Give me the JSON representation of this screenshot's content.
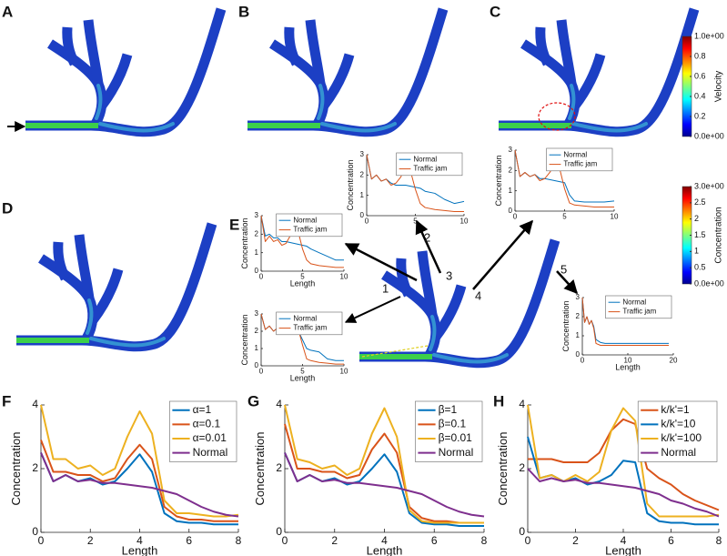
{
  "panels": [
    "A",
    "B",
    "C",
    "D",
    "E",
    "F",
    "G",
    "H"
  ],
  "locations": [
    "1",
    "2",
    "3",
    "4",
    "5"
  ],
  "chart_data": [
    {
      "type": "colorbar",
      "label": "Velocity",
      "ylim": [
        0,
        1
      ],
      "yticks": [
        {
          "value": 0,
          "label": "0.0e+00"
        },
        0.2,
        0.4,
        0.6,
        0.8,
        {
          "value": 1,
          "label": "1.0e+00"
        }
      ]
    },
    {
      "type": "colorbar",
      "label": "Concentration",
      "ylim": [
        0,
        3
      ],
      "yticks": [
        {
          "value": 0,
          "label": "0.0e+00"
        },
        0.5,
        1,
        1.5,
        2,
        2.5,
        {
          "value": 3,
          "label": "3.0e+00"
        }
      ]
    },
    {
      "type": "line",
      "ylabel": "Concentration",
      "legend": "upper right",
      "x": [
        0,
        0.5,
        1,
        1.5,
        2,
        2.5,
        3,
        3.5,
        4,
        4.5,
        5,
        5.5,
        6,
        7,
        8,
        9,
        10
      ],
      "xlim": [
        0,
        10
      ],
      "xticks": [
        0,
        5,
        10
      ],
      "ylim": [
        0,
        3
      ],
      "yticks": [
        0,
        1,
        2,
        3
      ],
      "series": [
        {
          "name": "Normal",
          "color": "#0072bd",
          "values": [
            3,
            1.8,
            2,
            1.7,
            1.8,
            1.6,
            1.5,
            1.5,
            1.5,
            1.45,
            1.4,
            1.35,
            1.2,
            1.1,
            0.8,
            0.6,
            0.7
          ]
        },
        {
          "name": "Traffic jam",
          "color": "#d95319",
          "values": [
            3,
            1.8,
            2,
            1.7,
            1.8,
            1.5,
            1.6,
            1.9,
            2.4,
            2.2,
            1.3,
            0.6,
            0.4,
            0.3,
            0.25,
            0.2,
            0.2
          ]
        }
      ]
    },
    {
      "type": "line",
      "ylabel": "Concentration",
      "legend": "upper right",
      "x": [
        0,
        0.5,
        1,
        1.5,
        2,
        2.5,
        3,
        3.5,
        4,
        4.5,
        5,
        5.5,
        6,
        7,
        8,
        9,
        10
      ],
      "xlim": [
        0,
        10
      ],
      "xticks": [
        0,
        5,
        10
      ],
      "ylim": [
        0,
        3
      ],
      "yticks": [
        0,
        1,
        2,
        3
      ],
      "series": [
        {
          "name": "Normal",
          "color": "#0072bd",
          "values": [
            3,
            1.7,
            1.9,
            1.7,
            1.8,
            1.6,
            1.6,
            1.55,
            1.5,
            1.45,
            1.4,
            0.8,
            0.5,
            0.45,
            0.45,
            0.45,
            0.5
          ]
        },
        {
          "name": "Traffic jam",
          "color": "#d95319",
          "values": [
            3,
            1.7,
            1.9,
            1.7,
            1.8,
            1.5,
            1.6,
            1.9,
            2.3,
            2.1,
            1.1,
            0.4,
            0.3,
            0.25,
            0.2,
            0.2,
            0.2
          ]
        }
      ]
    },
    {
      "type": "line",
      "ylabel": "Concentration",
      "xlabel": "Length",
      "legend": "upper right",
      "x": [
        0,
        0.5,
        1,
        1.5,
        2,
        2.5,
        3,
        3.5,
        4,
        4.5,
        5,
        5.5,
        6,
        7,
        8,
        9,
        10
      ],
      "xlim": [
        0,
        10
      ],
      "xticks": [
        0,
        5,
        10
      ],
      "ylim": [
        0,
        3
      ],
      "yticks": [
        0,
        1,
        2,
        3
      ],
      "series": [
        {
          "name": "Normal",
          "color": "#0072bd",
          "values": [
            3,
            1.9,
            2,
            1.8,
            1.8,
            1.6,
            1.6,
            1.55,
            1.5,
            1.45,
            1.4,
            1.35,
            1.2,
            1.0,
            0.8,
            0.6,
            0.6
          ]
        },
        {
          "name": "Traffic jam",
          "color": "#d95319",
          "values": [
            3,
            1.6,
            1.9,
            1.6,
            1.7,
            1.4,
            1.5,
            1.9,
            2.3,
            2.1,
            1.2,
            0.6,
            0.4,
            0.3,
            0.25,
            0.2,
            0.2
          ]
        }
      ]
    },
    {
      "type": "line",
      "ylabel": "Concentration",
      "xlabel": "Length",
      "legend": "upper right",
      "x": [
        0,
        0.5,
        1,
        1.5,
        2,
        2.5,
        3,
        3.5,
        4,
        4.5,
        5,
        5.5,
        6,
        7,
        8,
        9,
        10
      ],
      "xlim": [
        0,
        10
      ],
      "xticks": [
        0,
        5,
        10
      ],
      "ylim": [
        0,
        3
      ],
      "yticks": [
        0,
        1,
        2,
        3
      ],
      "series": [
        {
          "name": "Normal",
          "color": "#0072bd",
          "values": [
            3,
            2.1,
            2.3,
            2.0,
            2.2,
            2.0,
            2.1,
            2.2,
            2.2,
            2.0,
            1.5,
            1.0,
            0.9,
            0.8,
            0.4,
            0.3,
            0.3
          ]
        },
        {
          "name": "Traffic jam",
          "color": "#d95319",
          "values": [
            3,
            2.1,
            2.3,
            2.0,
            2.2,
            2.0,
            2.1,
            2.2,
            2.3,
            2.1,
            1.2,
            0.4,
            0.3,
            0.2,
            0.15,
            0.1,
            0.1
          ]
        }
      ]
    },
    {
      "type": "line",
      "ylabel": "Concentration",
      "xlabel": "Length",
      "legend": "upper right",
      "x": [
        0,
        0.5,
        1,
        1.5,
        2,
        2.5,
        3,
        4,
        5,
        10,
        15,
        19
      ],
      "xlim": [
        0,
        20
      ],
      "xticks": [
        0,
        10,
        20
      ],
      "ylim": [
        0,
        3
      ],
      "yticks": [
        0,
        1,
        2,
        3
      ],
      "series": [
        {
          "name": "Normal",
          "color": "#0072bd",
          "values": [
            3,
            1.7,
            2,
            1.6,
            1.8,
            1.5,
            0.8,
            0.65,
            0.6,
            0.6,
            0.6,
            0.6
          ]
        },
        {
          "name": "Traffic jam",
          "color": "#d95319",
          "values": [
            3,
            1.7,
            2,
            1.6,
            1.8,
            1.4,
            0.6,
            0.5,
            0.5,
            0.5,
            0.5,
            0.5
          ]
        }
      ]
    },
    {
      "type": "line",
      "ylabel": "Concentration",
      "xlabel": "Length",
      "legend": "upper right",
      "x": [
        0,
        0.5,
        1,
        1.5,
        2,
        2.5,
        3,
        3.5,
        4,
        4.5,
        5,
        5.5,
        6,
        6.5,
        7,
        7.5,
        8
      ],
      "xlim": [
        0,
        8
      ],
      "xticks": [
        0,
        2,
        4,
        6,
        8
      ],
      "ylim": [
        0,
        4
      ],
      "yticks": [
        0,
        2,
        4
      ],
      "series": [
        {
          "name": "α=1",
          "color": "#0072bd",
          "values": [
            2.5,
            1.6,
            1.8,
            1.6,
            1.7,
            1.5,
            1.6,
            2.0,
            2.45,
            1.9,
            0.6,
            0.35,
            0.3,
            0.3,
            0.25,
            0.25,
            0.25
          ]
        },
        {
          "name": "α=0.1",
          "color": "#d95319",
          "values": [
            2.9,
            1.9,
            1.9,
            1.8,
            1.8,
            1.6,
            1.7,
            2.3,
            2.75,
            2.3,
            0.8,
            0.5,
            0.4,
            0.4,
            0.35,
            0.35,
            0.35
          ]
        },
        {
          "name": "α=0.01",
          "color": "#edb120",
          "values": [
            4.0,
            2.3,
            2.3,
            2.0,
            2.1,
            1.8,
            2.0,
            3.0,
            3.8,
            3.1,
            1.0,
            0.6,
            0.6,
            0.55,
            0.5,
            0.5,
            0.55
          ]
        },
        {
          "name": "Normal",
          "color": "#7e2f8e",
          "values": [
            2.5,
            1.6,
            1.8,
            1.6,
            1.65,
            1.55,
            1.55,
            1.5,
            1.45,
            1.4,
            1.3,
            1.2,
            1.0,
            0.8,
            0.65,
            0.55,
            0.5
          ]
        }
      ]
    },
    {
      "type": "line",
      "ylabel": "Concentration",
      "xlabel": "Length",
      "legend": "upper right",
      "x": [
        0,
        0.5,
        1,
        1.5,
        2,
        2.5,
        3,
        3.5,
        4,
        4.5,
        5,
        5.5,
        6,
        6.5,
        7,
        7.5,
        8
      ],
      "xlim": [
        0,
        8
      ],
      "xticks": [
        0,
        2,
        4,
        6,
        8
      ],
      "ylim": [
        0,
        4
      ],
      "yticks": [
        0,
        2,
        4
      ],
      "series": [
        {
          "name": "β=1",
          "color": "#0072bd",
          "values": [
            2.5,
            1.6,
            1.8,
            1.6,
            1.7,
            1.5,
            1.6,
            2.0,
            2.45,
            1.9,
            0.6,
            0.3,
            0.25,
            0.25,
            0.2,
            0.2,
            0.2
          ]
        },
        {
          "name": "β=0.1",
          "color": "#d95319",
          "values": [
            3.4,
            2.0,
            2.0,
            1.9,
            1.9,
            1.7,
            1.8,
            2.6,
            3.1,
            2.5,
            0.8,
            0.45,
            0.35,
            0.35,
            0.3,
            0.3,
            0.3
          ]
        },
        {
          "name": "β=0.01",
          "color": "#edb120",
          "values": [
            4.0,
            2.3,
            2.2,
            2.0,
            2.1,
            1.8,
            2.0,
            3.1,
            3.9,
            3.0,
            0.7,
            0.35,
            0.3,
            0.3,
            0.3,
            0.3,
            0.3
          ]
        },
        {
          "name": "Normal",
          "color": "#7e2f8e",
          "values": [
            2.5,
            1.6,
            1.8,
            1.6,
            1.65,
            1.55,
            1.55,
            1.5,
            1.45,
            1.4,
            1.3,
            1.2,
            1.0,
            0.8,
            0.65,
            0.55,
            0.5
          ]
        }
      ]
    },
    {
      "type": "line",
      "ylabel": "Concentration",
      "xlabel": "Length",
      "legend": "upper right",
      "x": [
        0,
        0.5,
        1,
        1.5,
        2,
        2.5,
        3,
        3.5,
        4,
        4.5,
        5,
        5.5,
        6,
        6.5,
        7,
        7.5,
        8
      ],
      "xlim": [
        0,
        8
      ],
      "xticks": [
        0,
        2,
        4,
        6,
        8
      ],
      "ylim": [
        0,
        4
      ],
      "yticks": [
        0,
        2,
        4
      ],
      "series": [
        {
          "name": "k/k'=1",
          "color": "#d95319",
          "values": [
            2.3,
            2.3,
            2.3,
            2.2,
            2.2,
            2.2,
            2.5,
            3.2,
            3.55,
            3.4,
            2.0,
            1.7,
            1.5,
            1.2,
            1.0,
            0.85,
            0.7
          ]
        },
        {
          "name": "k/k'=10",
          "color": "#0072bd",
          "values": [
            3.0,
            1.7,
            1.8,
            1.6,
            1.7,
            1.5,
            1.6,
            1.8,
            2.25,
            2.2,
            0.6,
            0.35,
            0.3,
            0.3,
            0.25,
            0.25,
            0.25
          ]
        },
        {
          "name": "k/k'=100",
          "color": "#edb120",
          "values": [
            4.0,
            1.7,
            1.8,
            1.6,
            1.8,
            1.6,
            1.9,
            3.2,
            3.9,
            3.5,
            0.9,
            0.5,
            0.5,
            0.5,
            0.5,
            0.5,
            0.55
          ]
        },
        {
          "name": "Normal",
          "color": "#7e2f8e",
          "values": [
            2.0,
            1.6,
            1.7,
            1.6,
            1.65,
            1.55,
            1.55,
            1.5,
            1.45,
            1.4,
            1.3,
            1.2,
            1.0,
            0.9,
            0.75,
            0.65,
            0.5
          ]
        }
      ]
    }
  ]
}
